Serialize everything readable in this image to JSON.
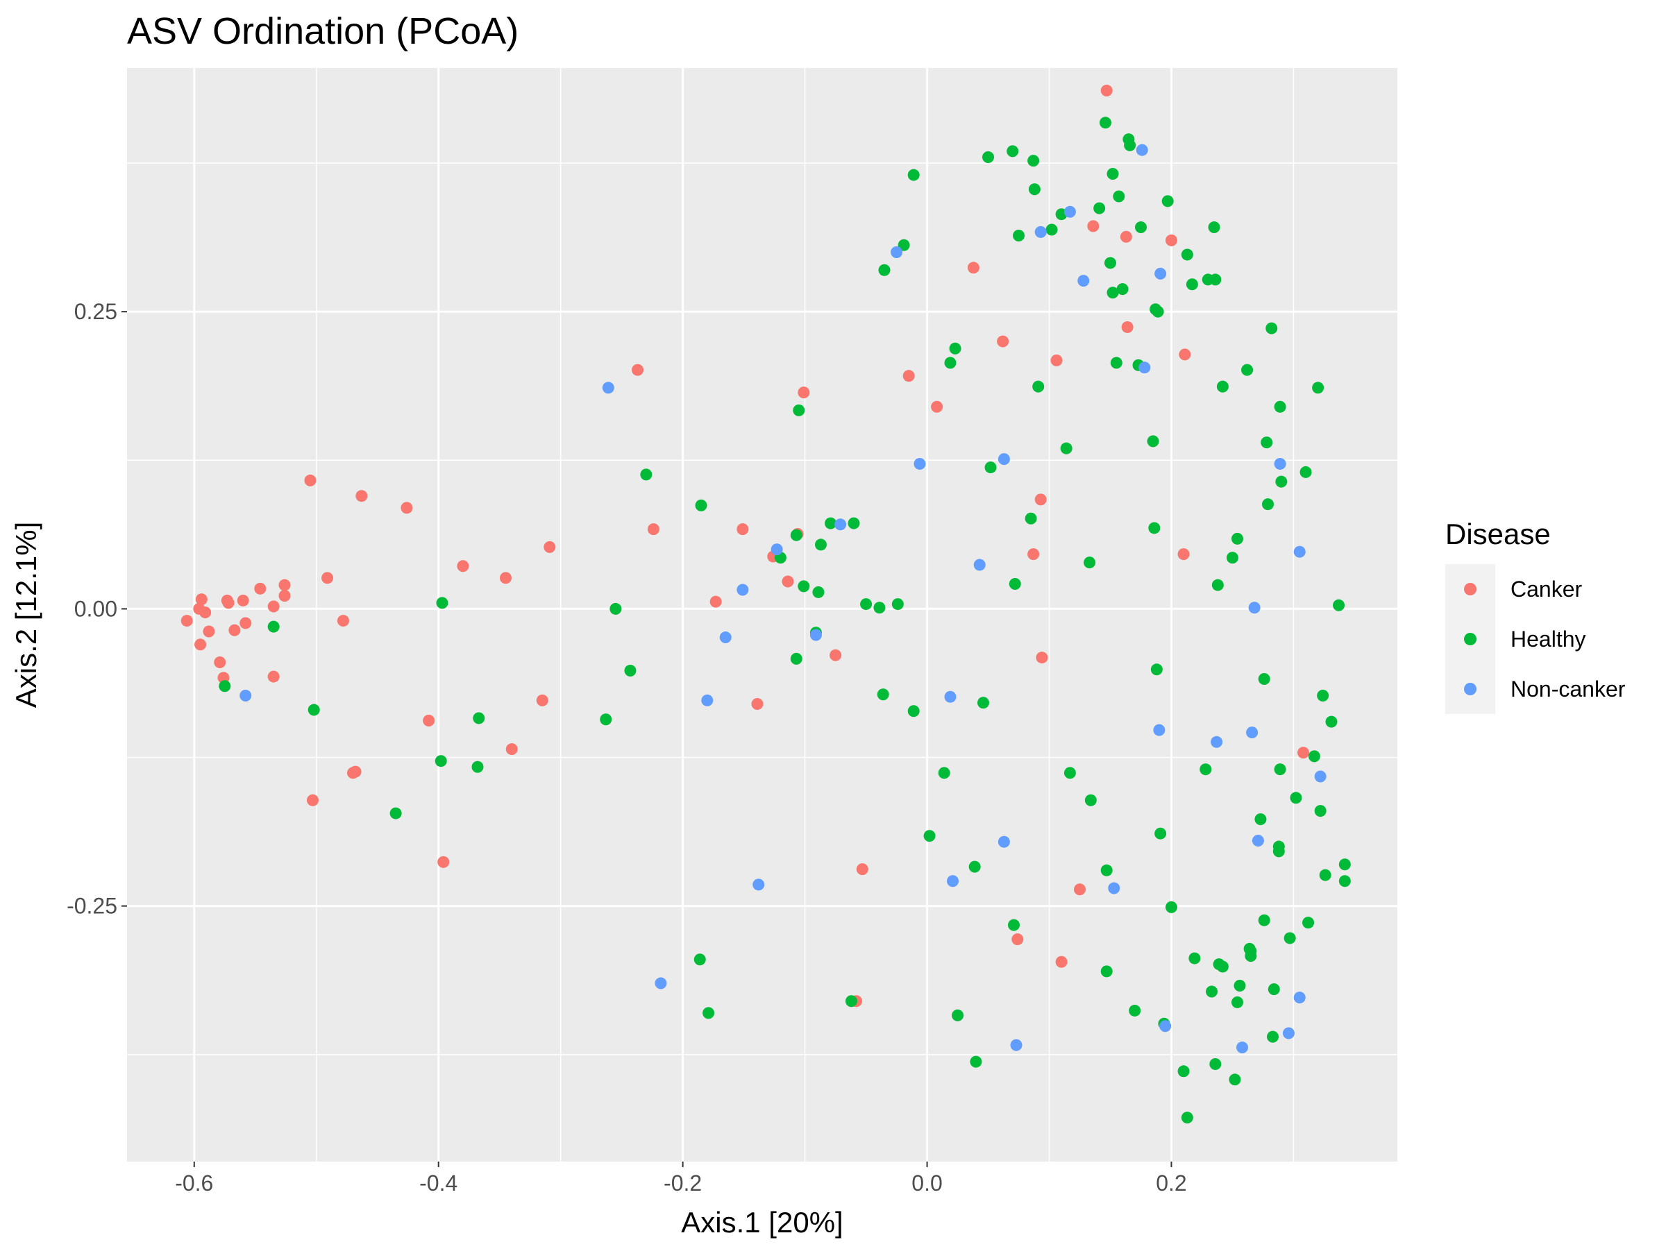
{
  "chart_data": {
    "type": "scatter",
    "title": "ASV Ordination (PCoA)",
    "xlabel": "Axis.1   [20%]",
    "ylabel": "Axis.2   [12.1%]",
    "xlim": [
      -0.655,
      0.385
    ],
    "ylim": [
      -0.465,
      0.455
    ],
    "x_ticks": [
      -0.6,
      -0.4,
      -0.2,
      0.0,
      0.2
    ],
    "x_tick_labels": [
      "-0.6",
      "-0.4",
      "-0.2",
      "0.0",
      "0.2"
    ],
    "y_ticks": [
      -0.25,
      0.0,
      0.25
    ],
    "y_tick_labels": [
      "-0.25",
      "0.00",
      "0.25"
    ],
    "grid": true,
    "legend": {
      "title": "Disease",
      "position": "right"
    },
    "series": [
      {
        "name": "Canker",
        "color": "#F8766D",
        "points": [
          [
            -0.606,
            -0.01
          ],
          [
            -0.596,
            0.0
          ],
          [
            -0.594,
            0.008
          ],
          [
            -0.591,
            -0.003
          ],
          [
            -0.588,
            -0.019
          ],
          [
            -0.595,
            -0.03
          ],
          [
            -0.573,
            0.007
          ],
          [
            -0.572,
            0.005
          ],
          [
            -0.567,
            -0.018
          ],
          [
            -0.56,
            0.007
          ],
          [
            -0.558,
            -0.012
          ],
          [
            -0.579,
            -0.045
          ],
          [
            -0.576,
            -0.058
          ],
          [
            -0.546,
            0.017
          ],
          [
            -0.535,
            0.002
          ],
          [
            -0.526,
            0.02
          ],
          [
            -0.526,
            0.011
          ],
          [
            -0.535,
            -0.057
          ],
          [
            -0.505,
            0.108
          ],
          [
            -0.491,
            0.026
          ],
          [
            -0.478,
            -0.01
          ],
          [
            -0.463,
            0.095
          ],
          [
            -0.47,
            -0.138
          ],
          [
            -0.468,
            -0.137
          ],
          [
            -0.503,
            -0.161
          ],
          [
            -0.426,
            0.085
          ],
          [
            -0.408,
            -0.094
          ],
          [
            -0.396,
            -0.213
          ],
          [
            -0.38,
            0.036
          ],
          [
            -0.345,
            0.026
          ],
          [
            -0.34,
            -0.118
          ],
          [
            -0.315,
            -0.077
          ],
          [
            -0.309,
            0.052
          ],
          [
            -0.237,
            0.201
          ],
          [
            -0.224,
            0.067
          ],
          [
            -0.173,
            0.006
          ],
          [
            -0.151,
            0.067
          ],
          [
            -0.139,
            -0.08
          ],
          [
            -0.126,
            0.044
          ],
          [
            -0.114,
            0.023
          ],
          [
            -0.106,
            0.063
          ],
          [
            -0.101,
            0.182
          ],
          [
            -0.075,
            -0.039
          ],
          [
            -0.058,
            -0.33
          ],
          [
            -0.053,
            -0.219
          ],
          [
            -0.015,
            0.196
          ],
          [
            0.008,
            0.17
          ],
          [
            0.038,
            0.287
          ],
          [
            0.062,
            0.225
          ],
          [
            0.074,
            -0.278
          ],
          [
            0.093,
            0.092
          ],
          [
            0.094,
            -0.041
          ],
          [
            0.087,
            0.046
          ],
          [
            0.106,
            0.209
          ],
          [
            0.11,
            -0.297
          ],
          [
            0.125,
            -0.236
          ],
          [
            0.136,
            0.322
          ],
          [
            0.147,
            0.436
          ],
          [
            0.163,
            0.313
          ],
          [
            0.164,
            0.237
          ],
          [
            0.2,
            0.31
          ],
          [
            0.211,
            0.214
          ],
          [
            0.21,
            0.046
          ],
          [
            0.308,
            -0.121
          ]
        ]
      },
      {
        "name": "Healthy",
        "color": "#00BA38",
        "points": [
          [
            -0.575,
            -0.065
          ],
          [
            -0.535,
            -0.015
          ],
          [
            -0.502,
            -0.085
          ],
          [
            -0.435,
            -0.172
          ],
          [
            -0.397,
            0.005
          ],
          [
            -0.398,
            -0.128
          ],
          [
            -0.367,
            -0.092
          ],
          [
            -0.368,
            -0.133
          ],
          [
            -0.263,
            -0.093
          ],
          [
            -0.255,
            0.0
          ],
          [
            -0.243,
            -0.052
          ],
          [
            -0.23,
            0.113
          ],
          [
            -0.185,
            0.087
          ],
          [
            -0.186,
            -0.295
          ],
          [
            -0.179,
            -0.34
          ],
          [
            -0.12,
            0.043
          ],
          [
            -0.107,
            0.062
          ],
          [
            -0.105,
            0.167
          ],
          [
            -0.107,
            -0.042
          ],
          [
            -0.101,
            0.019
          ],
          [
            -0.091,
            -0.02
          ],
          [
            -0.089,
            0.014
          ],
          [
            -0.087,
            0.054
          ],
          [
            -0.079,
            0.072
          ],
          [
            -0.06,
            0.072
          ],
          [
            -0.062,
            -0.33
          ],
          [
            -0.05,
            0.004
          ],
          [
            -0.039,
            0.001
          ],
          [
            -0.035,
            0.285
          ],
          [
            -0.036,
            -0.072
          ],
          [
            -0.024,
            0.004
          ],
          [
            -0.019,
            0.306
          ],
          [
            -0.011,
            0.365
          ],
          [
            -0.011,
            -0.086
          ],
          [
            0.002,
            -0.191
          ],
          [
            0.014,
            -0.138
          ],
          [
            0.019,
            0.207
          ],
          [
            0.023,
            0.219
          ],
          [
            0.025,
            -0.342
          ],
          [
            0.039,
            -0.217
          ],
          [
            0.04,
            -0.381
          ],
          [
            0.046,
            -0.079
          ],
          [
            0.05,
            0.38
          ],
          [
            0.052,
            0.119
          ],
          [
            0.07,
            0.385
          ],
          [
            0.071,
            -0.266
          ],
          [
            0.072,
            0.021
          ],
          [
            0.075,
            0.314
          ],
          [
            0.085,
            0.076
          ],
          [
            0.087,
            0.377
          ],
          [
            0.088,
            0.353
          ],
          [
            0.091,
            0.187
          ],
          [
            0.102,
            0.319
          ],
          [
            0.11,
            0.332
          ],
          [
            0.114,
            0.135
          ],
          [
            0.117,
            -0.138
          ],
          [
            0.133,
            0.039
          ],
          [
            0.134,
            -0.161
          ],
          [
            0.141,
            0.337
          ],
          [
            0.146,
            0.409
          ],
          [
            0.147,
            -0.22
          ],
          [
            0.147,
            -0.305
          ],
          [
            0.15,
            0.291
          ],
          [
            0.152,
            0.266
          ],
          [
            0.152,
            0.366
          ],
          [
            0.155,
            0.207
          ],
          [
            0.157,
            0.347
          ],
          [
            0.16,
            0.269
          ],
          [
            0.165,
            0.395
          ],
          [
            0.166,
            0.39
          ],
          [
            0.17,
            -0.338
          ],
          [
            0.173,
            0.205
          ],
          [
            0.175,
            0.321
          ],
          [
            0.185,
            0.141
          ],
          [
            0.186,
            0.068
          ],
          [
            0.187,
            0.252
          ],
          [
            0.188,
            -0.051
          ],
          [
            0.189,
            0.25
          ],
          [
            0.191,
            -0.189
          ],
          [
            0.194,
            -0.349
          ],
          [
            0.197,
            0.343
          ],
          [
            0.2,
            -0.251
          ],
          [
            0.21,
            -0.389
          ],
          [
            0.213,
            0.298
          ],
          [
            0.217,
            0.273
          ],
          [
            0.219,
            -0.294
          ],
          [
            0.228,
            -0.135
          ],
          [
            0.23,
            0.277
          ],
          [
            0.233,
            -0.322
          ],
          [
            0.235,
            0.321
          ],
          [
            0.236,
            -0.383
          ],
          [
            0.236,
            0.277
          ],
          [
            0.238,
            0.02
          ],
          [
            0.239,
            -0.299
          ],
          [
            0.242,
            0.187
          ],
          [
            0.242,
            -0.301
          ],
          [
            0.25,
            0.043
          ],
          [
            0.252,
            -0.396
          ],
          [
            0.254,
            0.059
          ],
          [
            0.254,
            -0.331
          ],
          [
            0.256,
            -0.317
          ],
          [
            0.262,
            0.201
          ],
          [
            0.264,
            -0.286
          ],
          [
            0.265,
            -0.288
          ],
          [
            0.265,
            -0.292
          ],
          [
            0.273,
            -0.177
          ],
          [
            0.276,
            -0.262
          ],
          [
            0.276,
            -0.059
          ],
          [
            0.278,
            0.14
          ],
          [
            0.279,
            0.088
          ],
          [
            0.282,
            0.236
          ],
          [
            0.284,
            -0.32
          ],
          [
            0.283,
            -0.36
          ],
          [
            0.288,
            -0.2
          ],
          [
            0.288,
            -0.204
          ],
          [
            0.289,
            0.17
          ],
          [
            0.29,
            0.107
          ],
          [
            0.289,
            -0.135
          ],
          [
            0.297,
            -0.277
          ],
          [
            0.302,
            -0.159
          ],
          [
            0.31,
            0.115
          ],
          [
            0.312,
            -0.264
          ],
          [
            0.317,
            -0.124
          ],
          [
            0.32,
            0.186
          ],
          [
            0.322,
            -0.17
          ],
          [
            0.324,
            -0.073
          ],
          [
            0.326,
            -0.224
          ],
          [
            0.331,
            -0.095
          ],
          [
            0.337,
            0.003
          ],
          [
            0.342,
            -0.215
          ],
          [
            0.342,
            -0.229
          ],
          [
            0.213,
            -0.428
          ]
        ]
      },
      {
        "name": "Non-canker",
        "color": "#619CFF",
        "points": [
          [
            -0.558,
            -0.073
          ],
          [
            -0.261,
            0.186
          ],
          [
            -0.218,
            -0.315
          ],
          [
            -0.18,
            -0.077
          ],
          [
            -0.165,
            -0.024
          ],
          [
            -0.151,
            0.016
          ],
          [
            -0.138,
            -0.232
          ],
          [
            -0.123,
            0.05
          ],
          [
            -0.091,
            -0.022
          ],
          [
            -0.071,
            0.071
          ],
          [
            -0.025,
            0.3
          ],
          [
            -0.006,
            0.122
          ],
          [
            0.019,
            -0.074
          ],
          [
            0.021,
            -0.229
          ],
          [
            0.043,
            0.037
          ],
          [
            0.063,
            0.126
          ],
          [
            0.063,
            -0.196
          ],
          [
            0.073,
            -0.367
          ],
          [
            0.093,
            0.317
          ],
          [
            0.117,
            0.334
          ],
          [
            0.128,
            0.276
          ],
          [
            0.153,
            -0.235
          ],
          [
            0.176,
            0.386
          ],
          [
            0.178,
            0.203
          ],
          [
            0.19,
            -0.102
          ],
          [
            0.191,
            0.282
          ],
          [
            0.195,
            -0.351
          ],
          [
            0.237,
            -0.112
          ],
          [
            0.258,
            -0.369
          ],
          [
            0.266,
            -0.104
          ],
          [
            0.268,
            0.001
          ],
          [
            0.271,
            -0.195
          ],
          [
            0.289,
            0.122
          ],
          [
            0.296,
            -0.357
          ],
          [
            0.305,
            0.048
          ],
          [
            0.305,
            -0.327
          ],
          [
            0.322,
            -0.141
          ]
        ]
      }
    ]
  }
}
